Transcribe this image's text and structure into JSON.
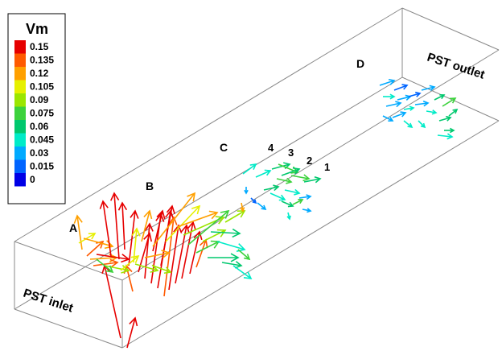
{
  "legend": {
    "title": "Vm",
    "entries": [
      {
        "label": "0.15",
        "color": "#e60000"
      },
      {
        "label": "0.135",
        "color": "#ff5a00"
      },
      {
        "label": "0.12",
        "color": "#ffa000"
      },
      {
        "label": "0.105",
        "color": "#e6f000"
      },
      {
        "label": "0.09",
        "color": "#9be600"
      },
      {
        "label": "0.075",
        "color": "#3cd23c"
      },
      {
        "label": "0.06",
        "color": "#00c86e"
      },
      {
        "label": "0.045",
        "color": "#00ebc8"
      },
      {
        "label": "0.03",
        "color": "#00aaff"
      },
      {
        "label": "0.015",
        "color": "#0064ff"
      },
      {
        "label": "0",
        "color": "#0000e6"
      }
    ]
  },
  "labels": {
    "inlet": "PST inlet",
    "outlet": "PST outlet",
    "zone_a": "A",
    "zone_b": "B",
    "zone_c": "C",
    "zone_d": "D",
    "mark_1": "1",
    "mark_2": "2",
    "mark_3": "3",
    "mark_4": "4"
  }
}
